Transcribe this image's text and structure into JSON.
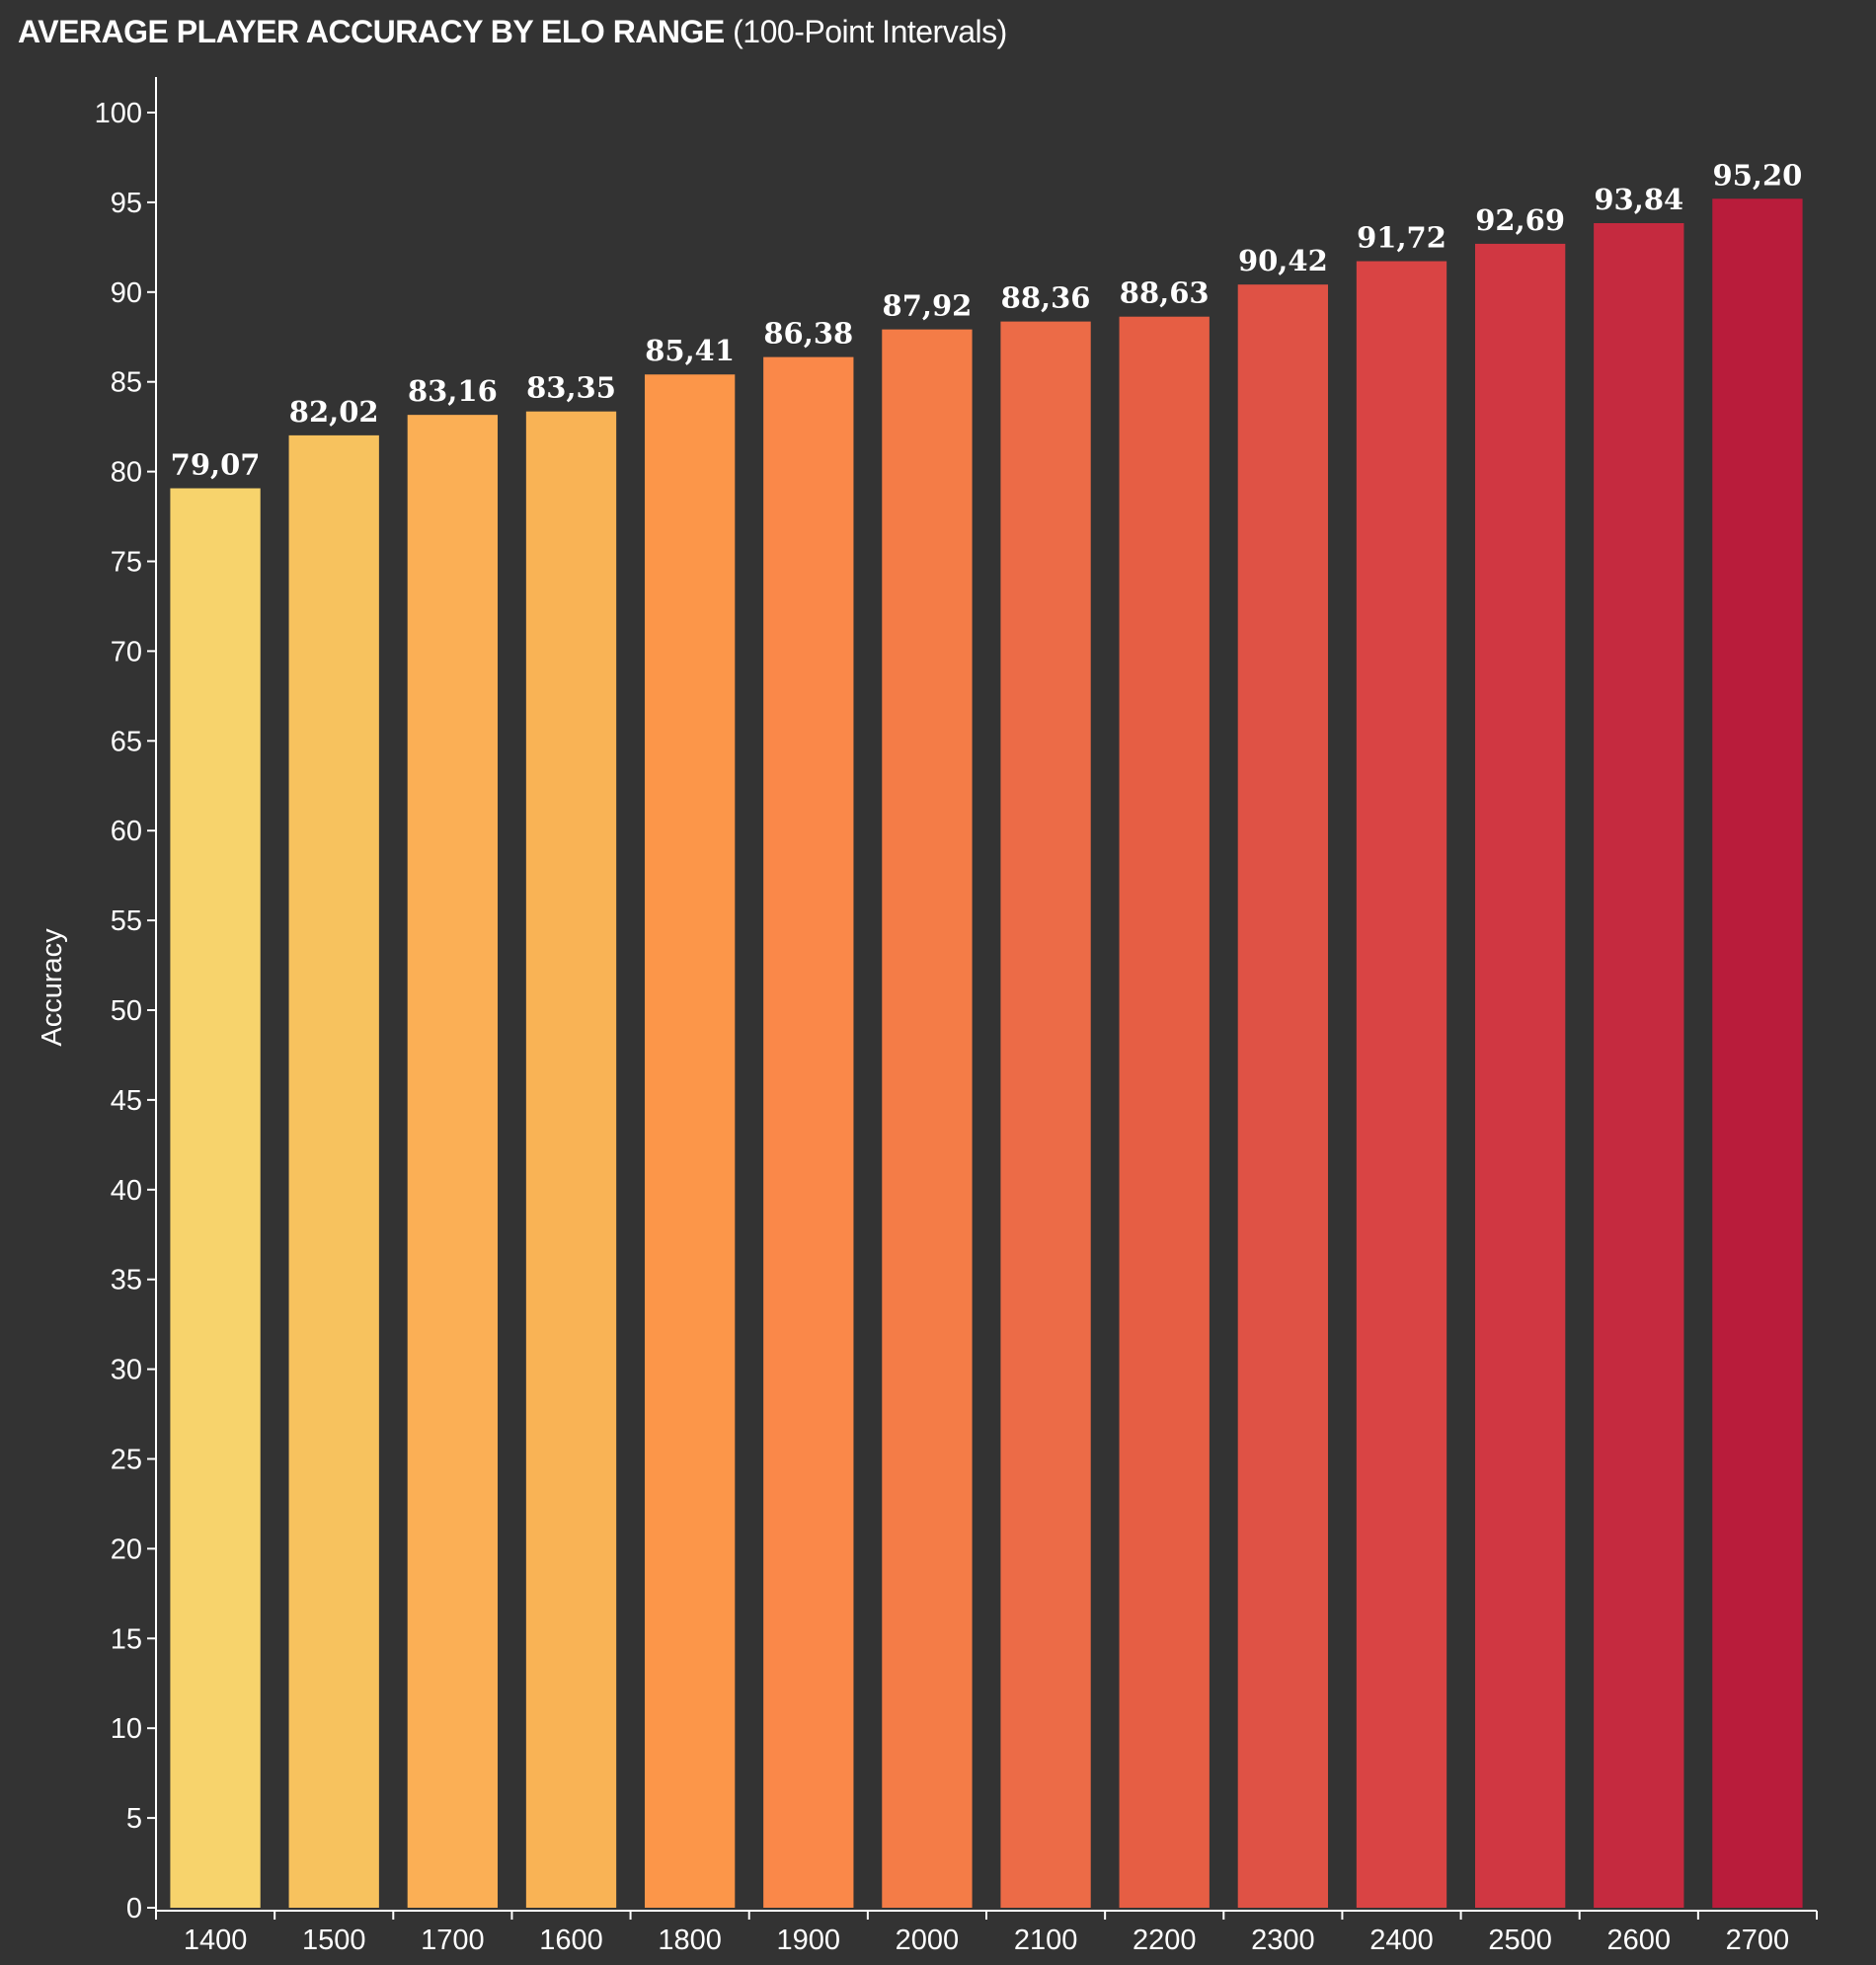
{
  "title_main": "AVERAGE PLAYER ACCURACY BY ELO RANGE",
  "title_sub": "(100-Point Intervals)",
  "chart_data": {
    "type": "bar",
    "title": "AVERAGE PLAYER ACCURACY BY ELO RANGE (100-Point Intervals)",
    "xlabel": "",
    "ylabel": "Accuracy",
    "ylim": [
      0,
      100
    ],
    "yticks": [
      0,
      5,
      10,
      15,
      20,
      25,
      30,
      35,
      40,
      45,
      50,
      55,
      60,
      65,
      70,
      75,
      80,
      85,
      90,
      95,
      100
    ],
    "grid": false,
    "categories": [
      "1400",
      "1500",
      "1700",
      "1600",
      "1800",
      "1900",
      "2000",
      "2100",
      "2200",
      "2300",
      "2400",
      "2500",
      "2600",
      "2700"
    ],
    "values": [
      79.07,
      82.02,
      83.16,
      83.35,
      85.41,
      86.38,
      87.92,
      88.36,
      88.63,
      90.42,
      91.72,
      92.69,
      93.84,
      95.2
    ],
    "value_labels": [
      "79,07",
      "82,02",
      "83,16",
      "83,35",
      "85,41",
      "86,38",
      "87,92",
      "88,36",
      "88,63",
      "90,42",
      "91,72",
      "92,69",
      "93,84",
      "95,20"
    ],
    "colors": [
      "#f7d36c",
      "#f7c25e",
      "#fbaf55",
      "#f9b355",
      "#fc9649",
      "#fa8849",
      "#f47c47",
      "#ec6b47",
      "#e65e44",
      "#df5245",
      "#d94444",
      "#d03742",
      "#c52a3f",
      "#b91c3b"
    ]
  }
}
